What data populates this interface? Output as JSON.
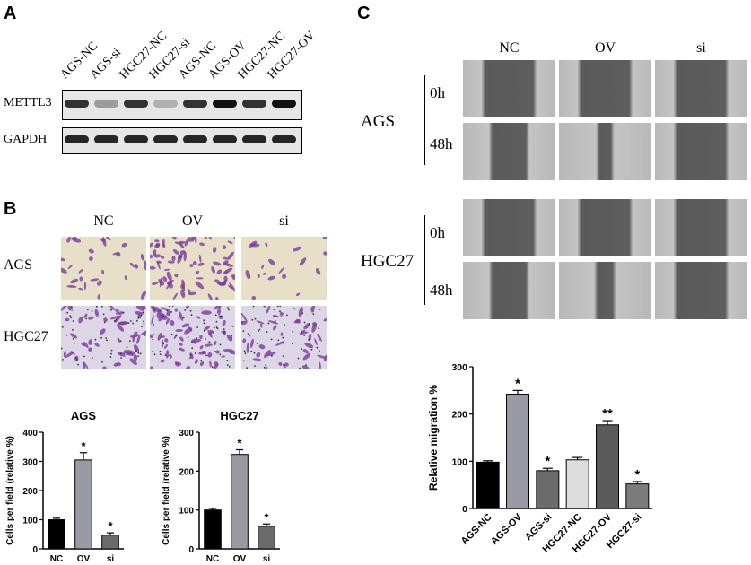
{
  "panels": {
    "a": "A",
    "b": "B",
    "c": "C"
  },
  "western_blot": {
    "lanes": [
      "AGS-NC",
      "AGS-si",
      "HGC27-NC",
      "HGC27-si",
      "AGS-NC",
      "AGS-OV",
      "HGC27-NC",
      "HGC27-OV"
    ],
    "rows": [
      "METTL3",
      "GAPDH"
    ],
    "mettl3_intensity": [
      0.85,
      0.35,
      0.85,
      0.25,
      0.85,
      1.0,
      0.85,
      1.0
    ],
    "gapdh_intensity": [
      0.9,
      0.9,
      0.9,
      0.9,
      0.9,
      0.9,
      0.9,
      0.9
    ]
  },
  "transwell": {
    "columns": [
      "NC",
      "OV",
      "si"
    ],
    "rows": [
      "AGS",
      "HGC27"
    ]
  },
  "wound": {
    "columns": [
      "NC",
      "OV",
      "si"
    ],
    "groups": [
      "AGS",
      "HGC27"
    ],
    "times": [
      "0h",
      "48h"
    ]
  },
  "chart_data": [
    {
      "type": "bar",
      "title": "AGS",
      "ylabel": "Cells per field (relative %)",
      "categories": [
        "NC",
        "OV",
        "si"
      ],
      "values": [
        100,
        305,
        47
      ],
      "errors": [
        5,
        25,
        8
      ],
      "significance": [
        "",
        "*",
        "*"
      ],
      "colors": [
        "#000000",
        "#9a9aa3",
        "#6b6b6b"
      ],
      "ylim": [
        0,
        400
      ],
      "yticks": [
        0,
        100,
        200,
        300,
        400
      ]
    },
    {
      "type": "bar",
      "title": "HGC27",
      "ylabel": "Cells per field (relative %)",
      "categories": [
        "NC",
        "OV",
        "si"
      ],
      "values": [
        100,
        243,
        58
      ],
      "errors": [
        4,
        12,
        6
      ],
      "significance": [
        "",
        "*",
        "*"
      ],
      "colors": [
        "#000000",
        "#9a9aa3",
        "#6b6b6b"
      ],
      "ylim": [
        0,
        300
      ],
      "yticks": [
        0,
        100,
        200,
        300
      ]
    },
    {
      "type": "bar",
      "title": "",
      "ylabel": "Relative migration %",
      "categories": [
        "AGS-NC",
        "AGS-OV",
        "AGS-si",
        "HGC27-NC",
        "HGC27-OV",
        "HGC27-si"
      ],
      "values": [
        98,
        242,
        80,
        103,
        177,
        52
      ],
      "errors": [
        3,
        8,
        5,
        5,
        9,
        5
      ],
      "significance": [
        "",
        "*",
        "*",
        "",
        "**",
        "*"
      ],
      "colors": [
        "#000000",
        "#9a9aa3",
        "#6b6b6b",
        "#dcdcdc",
        "#5a5a5a",
        "#7b7b7b"
      ],
      "ylim": [
        0,
        300
      ],
      "yticks": [
        0,
        100,
        200,
        300
      ]
    }
  ]
}
